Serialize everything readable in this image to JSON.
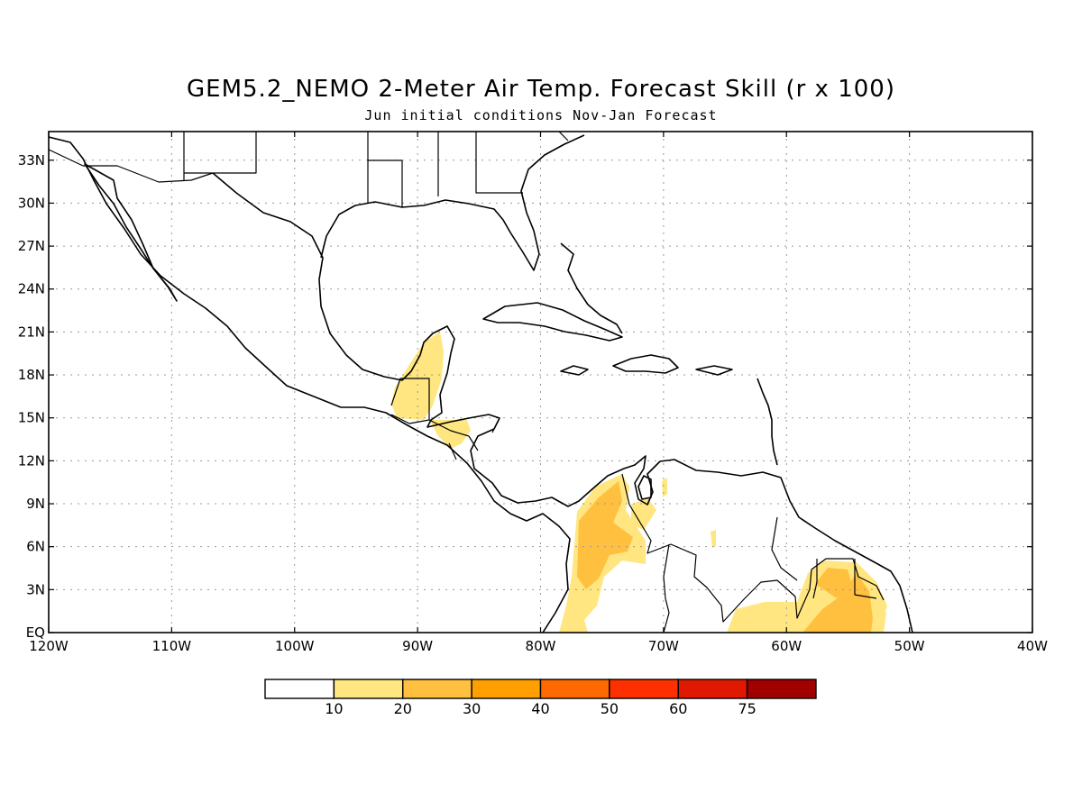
{
  "title": "GEM5.2_NEMO 2-Meter Air Temp. Forecast Skill (r x 100)",
  "subtitle": "Jun initial conditions  Nov-Jan Forecast",
  "map": {
    "region": "Central America, Gulf of Mexico and Caribbean",
    "lon_range": [
      -120,
      -40
    ],
    "lat_range": [
      0,
      35
    ],
    "gridlines": "dotted",
    "lat_ticks": [
      "EQ",
      "3N",
      "6N",
      "9N",
      "12N",
      "15N",
      "18N",
      "21N",
      "24N",
      "27N",
      "30N",
      "33N"
    ],
    "lon_ticks": [
      "120W",
      "110W",
      "100W",
      "90W",
      "80W",
      "70W",
      "60W",
      "50W",
      "40W"
    ],
    "skill_areas": [
      {
        "name": "Yucatan / Guatemala",
        "level": "10-20"
      },
      {
        "name": "Honduras",
        "level": "10-20"
      },
      {
        "name": "Colombia",
        "level": "10-30"
      },
      {
        "name": "Venezuela interior",
        "level": "10-20"
      },
      {
        "name": "Northern Brazil / Guianas",
        "level": "10-30"
      }
    ]
  },
  "colorbar": {
    "colors": [
      "#ffffff",
      "#ffe680",
      "#ffc040",
      "#ffa000",
      "#ff6a00",
      "#ff3000",
      "#e01800",
      "#a00000"
    ],
    "labels": [
      "10",
      "20",
      "30",
      "40",
      "50",
      "60",
      "75"
    ]
  }
}
